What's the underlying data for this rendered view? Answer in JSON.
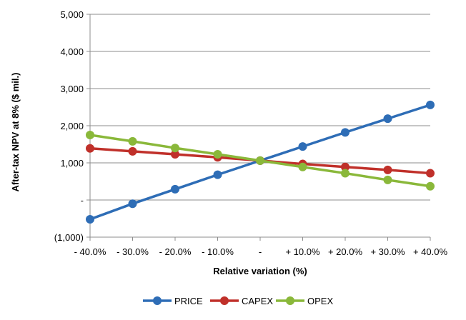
{
  "chart_data": {
    "type": "line",
    "title": "",
    "xlabel": "Relative variation (%)",
    "ylabel": "After-tax NPV at 8% ($ mil.)",
    "categories": [
      "- 40.0%",
      "- 30.0%",
      "- 20.0%",
      "- 10.0%",
      "-",
      "+ 10.0%",
      "+ 20.0%",
      "+ 30.0%",
      "+ 40.0%"
    ],
    "ylim": [
      -1000,
      5000
    ],
    "yticks": [
      -1000,
      0,
      1000,
      2000,
      3000,
      4000,
      5000
    ],
    "ytick_labels": [
      "(1,000)",
      "-",
      "1,000",
      "2,000",
      "3,000",
      "4,000",
      "5,000"
    ],
    "grid": true,
    "legend_position": "bottom",
    "series": [
      {
        "name": "PRICE",
        "color": "#2e6db6",
        "values": [
          -520,
          -100,
          290,
          680,
          1060,
          1440,
          1820,
          2190,
          2560
        ]
      },
      {
        "name": "CAPEX",
        "color": "#c0302a",
        "values": [
          1390,
          1310,
          1230,
          1150,
          1060,
          970,
          890,
          810,
          720
        ]
      },
      {
        "name": "OPEX",
        "color": "#8ab83a",
        "values": [
          1750,
          1580,
          1400,
          1230,
          1060,
          890,
          720,
          540,
          370
        ]
      }
    ]
  }
}
